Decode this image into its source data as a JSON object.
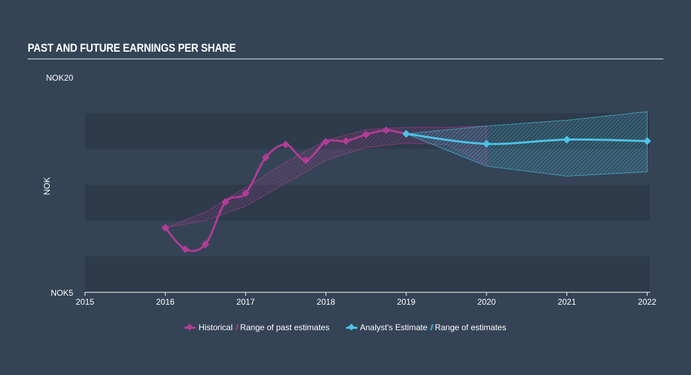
{
  "title": "PAST AND FUTURE EARNINGS PER SHARE",
  "colors": {
    "background": "#344456",
    "band_dark": "#2d3b4b",
    "historical": "#b23c96",
    "estimate": "#4cc3e6",
    "axis": "#ffffff"
  },
  "legend": {
    "historical": "Historical",
    "past_range": "Range of past estimates",
    "estimate": "Analyst's Estimate",
    "future_range": "Range of estimates",
    "hatch_symbol": "//"
  },
  "chart_data": {
    "type": "line",
    "title": "PAST AND FUTURE EARNINGS PER SHARE",
    "ylabel": "NOK",
    "xlabel": "",
    "xlim": [
      2015,
      2022.03
    ],
    "ylim": [
      5,
      20
    ],
    "y_tick_labels": [
      {
        "value": 20,
        "label": "NOK20"
      },
      {
        "value": 5,
        "label": "NOK5"
      }
    ],
    "x_tick_labels": [
      "2015",
      "2016",
      "2017",
      "2018",
      "2019",
      "2020",
      "2021",
      "2022"
    ],
    "x_ticks": [
      2015,
      2016,
      2017,
      2018,
      2019,
      2020,
      2021,
      2022
    ],
    "grid": "alternating horizontal bands",
    "legend_position": "bottom-center",
    "series": [
      {
        "name": "Historical",
        "kind": "line",
        "x": [
          2016.0,
          2016.25,
          2016.5,
          2016.75,
          2017.0,
          2017.25,
          2017.5,
          2017.75,
          2018.0,
          2018.25,
          2018.5,
          2018.75,
          2019.0
        ],
        "y": [
          9.5,
          8.0,
          8.35,
          11.3,
          11.9,
          14.4,
          15.3,
          14.2,
          15.5,
          15.55,
          16.0,
          16.3,
          16.05
        ]
      },
      {
        "name": "Analyst's Estimate",
        "kind": "line",
        "x": [
          2019.0,
          2020.0,
          2021.0,
          2022.0
        ],
        "y": [
          16.05,
          15.35,
          15.65,
          15.55
        ]
      },
      {
        "name": "Range of past estimates",
        "kind": "band",
        "x": [
          2016.0,
          2016.5,
          2017.0,
          2017.5,
          2018.0,
          2018.5,
          2019.0,
          2019.5,
          2020.0
        ],
        "low": [
          9.5,
          10.0,
          11.0,
          12.6,
          14.2,
          15.1,
          15.4,
          15.3,
          13.9
        ],
        "high": [
          9.5,
          10.6,
          12.3,
          14.1,
          15.6,
          16.35,
          16.5,
          16.5,
          16.6
        ]
      },
      {
        "name": "Range of estimates",
        "kind": "band",
        "x": [
          2019.0,
          2020.0,
          2021.0,
          2022.0
        ],
        "low": [
          16.05,
          13.8,
          13.1,
          13.4
        ],
        "high": [
          16.05,
          16.6,
          17.0,
          17.6
        ]
      }
    ]
  }
}
